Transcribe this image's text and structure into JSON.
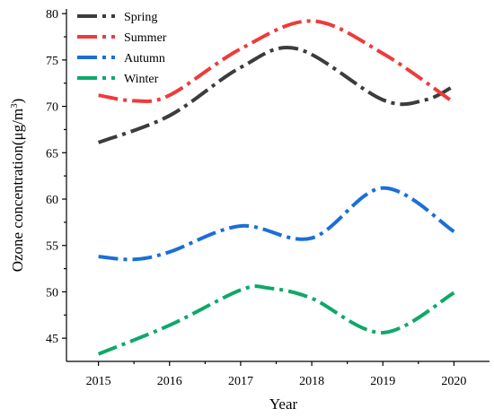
{
  "chart_data": {
    "type": "line",
    "xlabel": "Year",
    "ylabel_main": "Ozone concentration(μg/m",
    "ylabel_sup": "3",
    "ylabel_close": ")",
    "x": [
      2015,
      2016,
      2017,
      2018,
      2019,
      2020
    ],
    "x_tick_labels": [
      "2015",
      "2016",
      "2017",
      "2018",
      "2019",
      "2020"
    ],
    "ylim": [
      42.5,
      80.5
    ],
    "xlim": [
      2014.55,
      2020.5
    ],
    "y_ticks": [
      45,
      50,
      55,
      60,
      65,
      70,
      75,
      80
    ],
    "y_tick_labels": [
      "45",
      "50",
      "55",
      "60",
      "65",
      "70",
      "75",
      "80"
    ],
    "grid": false,
    "legend_position": "top-left",
    "series": [
      {
        "name": "Spring",
        "color": "#3c3c3c",
        "points": [
          [
            2015,
            66.1
          ],
          [
            2016,
            69.0
          ],
          [
            2017,
            74.2
          ],
          [
            2017.8,
            76.2
          ],
          [
            2019,
            70.7
          ],
          [
            2019.6,
            70.7
          ],
          [
            2020,
            72.2
          ]
        ]
      },
      {
        "name": "Summer",
        "color": "#ee3b3b",
        "points": [
          [
            2015,
            71.2
          ],
          [
            2015.5,
            70.6
          ],
          [
            2016,
            71.2
          ],
          [
            2017,
            76.2
          ],
          [
            2018,
            79.2
          ],
          [
            2019,
            75.7
          ],
          [
            2020,
            70.4
          ]
        ]
      },
      {
        "name": "Autumn",
        "color": "#1a6fd6",
        "points": [
          [
            2015,
            53.8
          ],
          [
            2015.5,
            53.5
          ],
          [
            2016,
            54.3
          ],
          [
            2017,
            57.1
          ],
          [
            2018,
            55.8
          ],
          [
            2019,
            61.2
          ],
          [
            2020,
            56.5
          ]
        ]
      },
      {
        "name": "Winter",
        "color": "#0fa86a",
        "points": [
          [
            2015,
            43.3
          ],
          [
            2016,
            46.4
          ],
          [
            2017,
            50.2
          ],
          [
            2017.4,
            50.4
          ],
          [
            2018,
            49.3
          ],
          [
            2019,
            45.6
          ],
          [
            2020,
            49.9
          ]
        ]
      }
    ]
  }
}
